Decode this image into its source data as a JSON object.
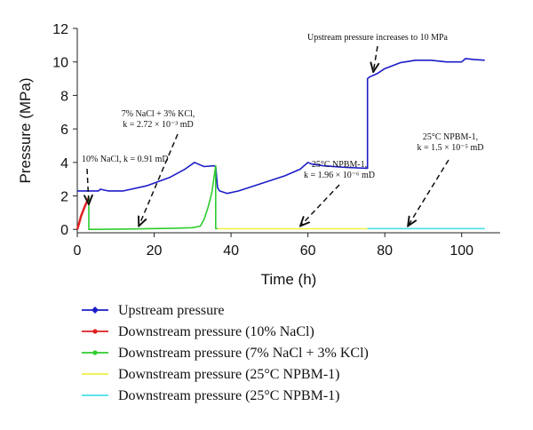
{
  "chart_data": {
    "type": "line",
    "xlabel": "Time (h)",
    "ylabel": "Pressure (MPa)",
    "xlim": [
      0,
      110
    ],
    "ylim": [
      -0.2,
      12
    ],
    "xticks": [
      0,
      20,
      40,
      60,
      80,
      100
    ],
    "yticks": [
      0,
      2,
      4,
      6,
      8,
      10,
      12
    ],
    "grid": false,
    "legend_position": "bottom",
    "series": [
      {
        "name": "Upstream pressure",
        "color": "#1c1cc8",
        "marker": "diamond",
        "x": [
          0,
          3,
          3,
          5.5,
          6,
          8,
          12,
          18,
          24,
          28,
          30.5,
          31,
          33,
          35.5,
          36,
          36.5,
          37,
          39,
          42,
          48,
          54,
          58,
          60,
          61,
          64,
          70,
          75.5,
          75.5,
          76,
          78,
          80,
          84,
          88,
          92,
          96,
          100,
          101,
          103,
          106
        ],
        "y": [
          2.3,
          2.3,
          2.3,
          2.3,
          2.4,
          2.3,
          2.3,
          2.6,
          3.1,
          3.6,
          4.0,
          3.95,
          3.75,
          3.8,
          3.75,
          2.5,
          2.3,
          2.15,
          2.3,
          2.75,
          3.2,
          3.6,
          4.0,
          3.9,
          3.8,
          3.7,
          3.65,
          9.0,
          9.1,
          9.3,
          9.6,
          9.95,
          10.1,
          10.1,
          10.0,
          10.0,
          10.2,
          10.15,
          10.1
        ]
      },
      {
        "name": "Downstream pressure (10% NaCl)",
        "color": "#e02020",
        "marker": "circle",
        "x": [
          0,
          0.5,
          1,
          2,
          3
        ],
        "y": [
          0,
          0.4,
          0.8,
          1.4,
          1.9
        ]
      },
      {
        "name": "Downstream pressure (7% NaCl + 3% KCl)",
        "color": "#2ecc2e",
        "marker": "circle",
        "x": [
          3,
          3,
          5,
          10,
          15,
          20,
          25,
          30,
          32,
          33,
          34,
          35,
          35.5,
          36,
          36,
          36.5
        ],
        "y": [
          2.0,
          0,
          0,
          0.02,
          0.03,
          0.05,
          0.07,
          0.1,
          0.2,
          0.6,
          1.3,
          2.2,
          3.0,
          3.8,
          0.05,
          0.05
        ]
      },
      {
        "name": "Downstream pressure (25°C NPBM-1)",
        "color": "#f0f040",
        "marker": "none",
        "x": [
          36.5,
          45,
          55,
          65,
          75.5
        ],
        "y": [
          0.04,
          0.04,
          0.04,
          0.04,
          0.04
        ]
      },
      {
        "name": "Downstream pressure (25°C NPBM-1)",
        "color": "#4ae0ea",
        "marker": "none",
        "x": [
          75.5,
          85,
          95,
          106
        ],
        "y": [
          0.05,
          0.05,
          0.05,
          0.05
        ]
      }
    ],
    "annotations": [
      {
        "lines": [
          "Upstream pressure increases to 10 MPa"
        ],
        "arrow_to": [
          77,
          9.4
        ],
        "arrow_style": "dashed"
      },
      {
        "lines": [
          "7% NaCl + 3% KCl,",
          "k = 2.72 × 10⁻³ mD"
        ],
        "arrow_to": [
          16,
          0.2
        ],
        "arrow_style": "dashed"
      },
      {
        "lines": [
          "10% NaCl, k = 0.91 mD"
        ],
        "arrow_to": [
          3,
          1.5
        ],
        "arrow_style": "dashed"
      },
      {
        "lines": [
          "25°C NPBM-1,",
          "k = 1.96 × 10⁻⁶ mD"
        ],
        "arrow_to": [
          58,
          0.2
        ],
        "arrow_style": "dashed"
      },
      {
        "lines": [
          "25°C NPBM-1,",
          "k = 1.5 × 10⁻⁵ mD"
        ],
        "arrow_to": [
          86,
          0.2
        ],
        "arrow_style": "dashed"
      }
    ]
  }
}
